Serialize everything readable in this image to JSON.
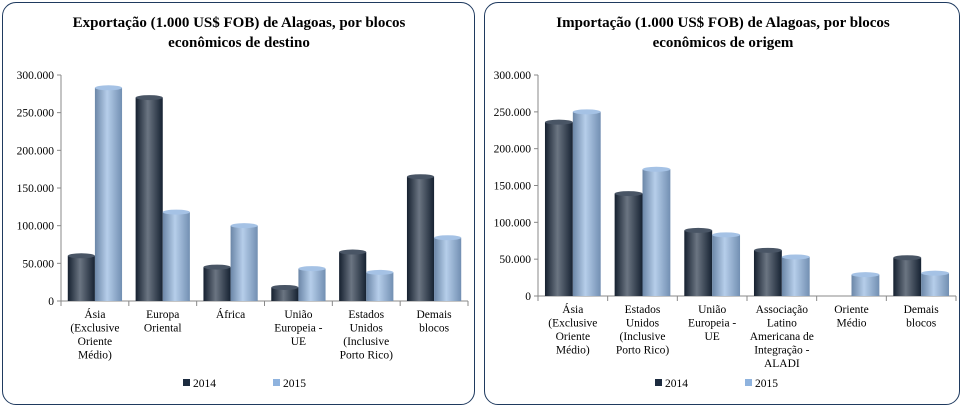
{
  "chart_data": [
    {
      "type": "bar",
      "title_lines": [
        "Exportação (1.000 US$  FOB) de Alagoas, por blocos",
        "econômicos de destino"
      ],
      "categories": [
        [
          "Ásia",
          "(Exclusive",
          "Oriente",
          "Médio)"
        ],
        [
          "Europa",
          "Oriental"
        ],
        [
          "África"
        ],
        [
          "União",
          "Europeia -",
          "UE"
        ],
        [
          "Estados",
          "Unidos",
          "(Inclusive",
          "Porto Rico)"
        ],
        [
          "Demais",
          "blocos"
        ]
      ],
      "series": [
        {
          "name": "2014",
          "color": "#1c2b3f",
          "values": [
            60000,
            270000,
            45000,
            18000,
            65000,
            165000
          ]
        },
        {
          "name": "2015",
          "color": "#8fb3de",
          "values": [
            283000,
            118000,
            100000,
            43000,
            38000,
            84000
          ]
        }
      ],
      "ylim": [
        0,
        300000
      ],
      "yticks": [
        "0",
        "50.000",
        "100.000",
        "150.000",
        "200.000",
        "250.000",
        "300.000"
      ],
      "legend": "bottom"
    },
    {
      "type": "bar",
      "title_lines": [
        "Importação (1.000 US$  FOB) de Alagoas, por blocos",
        "econômicos de origem"
      ],
      "categories": [
        [
          "Ásia",
          "(Exclusive",
          "Oriente",
          "Médio)"
        ],
        [
          "Estados",
          "Unidos",
          "(Inclusive",
          "Porto Rico)"
        ],
        [
          "União",
          "Europeia -",
          "UE"
        ],
        [
          "Associação",
          "Latino",
          "Americana de",
          "Integração -",
          "ALADI"
        ],
        [
          "Oriente",
          "Médio"
        ],
        [
          "Demais",
          "blocos"
        ]
      ],
      "series": [
        {
          "name": "2014",
          "color": "#1c2b3f",
          "values": [
            236000,
            139000,
            89000,
            62000,
            0,
            52000
          ]
        },
        {
          "name": "2015",
          "color": "#8fb3de",
          "values": [
            250000,
            172000,
            83000,
            53000,
            29000,
            31000
          ]
        }
      ],
      "ylim": [
        0,
        300000
      ],
      "yticks": [
        "0",
        "50.000",
        "100.000",
        "150.000",
        "200.000",
        "250.000",
        "300.000"
      ],
      "legend": "bottom"
    }
  ]
}
